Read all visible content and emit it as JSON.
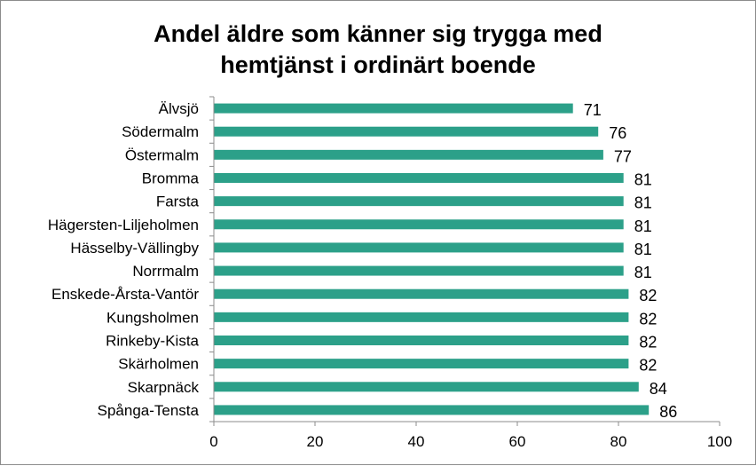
{
  "chart_data": {
    "type": "bar",
    "orientation": "horizontal",
    "title_lines": [
      "Andel äldre som känner sig trygga med",
      "hemtjänst i ordinärt boende"
    ],
    "categories": [
      "Älvsjö",
      "Södermalm",
      "Östermalm",
      "Bromma",
      "Farsta",
      "Hägersten-Liljeholmen",
      "Hässelby-Vällingby",
      "Norrmalm",
      "Enskede-Årsta-Vantör",
      "Kungsholmen",
      "Rinkeby-Kista",
      "Skärholmen",
      "Skarpnäck",
      "Spånga-Tensta"
    ],
    "values": [
      71,
      76,
      77,
      81,
      81,
      81,
      81,
      81,
      82,
      82,
      82,
      82,
      84,
      86
    ],
    "xlim": [
      0,
      100
    ],
    "xticks": [
      0,
      20,
      40,
      60,
      80,
      100
    ],
    "bar_color": "#2ca089",
    "grid": false,
    "legend": "none"
  }
}
